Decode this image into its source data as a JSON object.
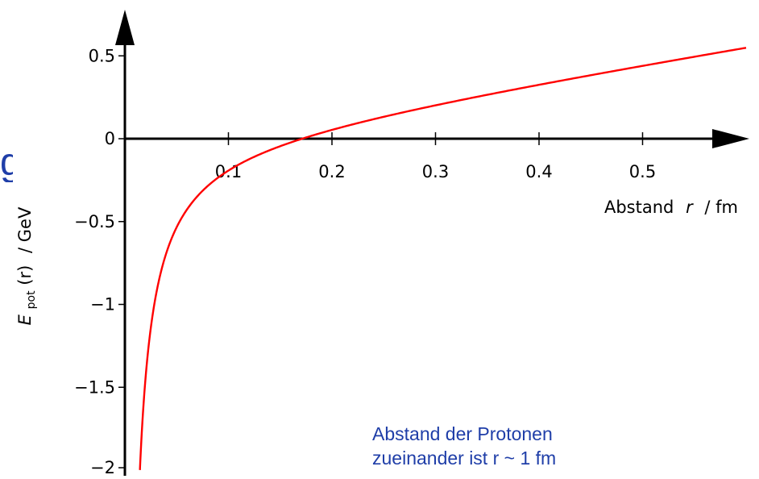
{
  "chart_data": {
    "type": "line",
    "title": "",
    "xlabel_text": "Abstand",
    "xlabel_var": "r",
    "xlabel_unit": "/ fm",
    "ylabel_sym": "E",
    "ylabel_sub": "pot",
    "ylabel_arg": "(r)",
    "ylabel_unit": "/ GeV",
    "xlim": [
      0,
      0.6
    ],
    "ylim": [
      -2,
      0.5
    ],
    "x_ticks": [
      0.1,
      0.2,
      0.3,
      0.4,
      0.5
    ],
    "x_tick_labels": [
      "0.1",
      "0.2",
      "0.3",
      "0.4",
      "0.5"
    ],
    "y_ticks": [
      0.5,
      0,
      -0.5,
      -1,
      -1.5,
      -2
    ],
    "y_tick_labels": [
      "0.5",
      "0",
      "−0.5",
      "−1",
      "−1.5",
      "−2"
    ],
    "grid": false,
    "series": [
      {
        "color": "#ff0000",
        "function": "-a/r + k*r",
        "a": 0.0292,
        "k": 0.9955,
        "x_range": [
          0.0145,
          0.6
        ],
        "sample_points": [
          {
            "x": 0.0145,
            "y": -2.0
          },
          {
            "x": 0.05,
            "y": -0.53
          },
          {
            "x": 0.1,
            "y": -0.192
          },
          {
            "x": 0.1713,
            "y": 0.0
          },
          {
            "x": 0.3,
            "y": 0.202
          },
          {
            "x": 0.5,
            "y": 0.44
          },
          {
            "x": 0.6,
            "y": 0.5
          }
        ]
      }
    ]
  },
  "annotation": {
    "line1": "Abstand der Protonen",
    "line2": "zueinander ist r ~ 1 fm"
  },
  "fragment": {
    "text": "g"
  },
  "colors": {
    "curve": "#ff0000",
    "annotation": "#1f3ea8",
    "axes": "#000000"
  }
}
